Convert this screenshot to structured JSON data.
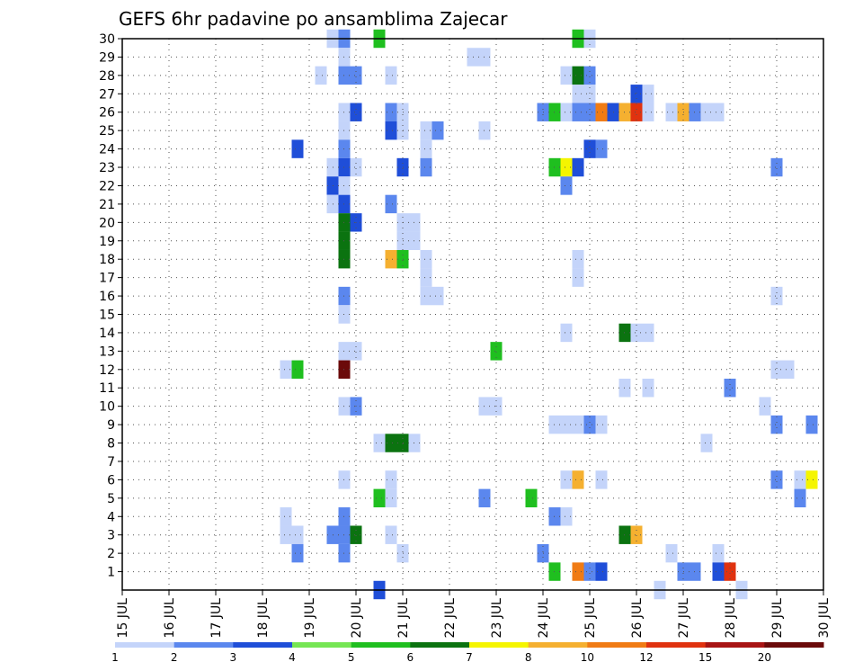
{
  "chart_data": {
    "type": "heatmap",
    "title": "GEFS 6hr padavine po ansamblima Zajecar",
    "xlabel": "",
    "ylabel": "",
    "x_ticks": [
      "15 JUL",
      "16 JUL",
      "17 JUL",
      "18 JUL",
      "19 JUL",
      "20 JUL",
      "21 JUL",
      "22 JUL",
      "23 JUL",
      "24 JUL",
      "25 JUL",
      "26 JUL",
      "27 JUL",
      "28 JUL",
      "29 JUL",
      "30 JUL"
    ],
    "y_ticks": [
      1,
      2,
      3,
      4,
      5,
      6,
      7,
      8,
      9,
      10,
      11,
      12,
      13,
      14,
      15,
      16,
      17,
      18,
      19,
      20,
      21,
      22,
      23,
      24,
      25,
      26,
      27,
      28,
      29,
      30
    ],
    "xlim": [
      15,
      30
    ],
    "ylim": [
      0,
      30
    ],
    "grid": true,
    "time_step_days": 0.25,
    "color_levels": [
      "1",
      "2",
      "3",
      "4",
      "5",
      "6",
      "7",
      "8",
      "10",
      "12",
      "15",
      "20"
    ],
    "color_scale": [
      "#c4d4fa",
      "#5b87ee",
      "#1f4ed8",
      "#75e653",
      "#1fbf1f",
      "#0b7310",
      "#f5f500",
      "#f5b030",
      "#f07b14",
      "#e0320f",
      "#a81414",
      "#6b0a0a"
    ],
    "cells": [
      [
        19.5,
        30,
        0
      ],
      [
        19.75,
        30,
        1
      ],
      [
        20.5,
        30,
        4
      ],
      [
        24.75,
        30,
        4
      ],
      [
        25.0,
        30,
        0
      ],
      [
        19.75,
        29,
        0
      ],
      [
        22.5,
        29,
        0
      ],
      [
        22.75,
        29,
        0
      ],
      [
        19.25,
        28,
        0
      ],
      [
        19.75,
        28,
        1
      ],
      [
        20.0,
        28,
        1
      ],
      [
        20.75,
        28,
        0
      ],
      [
        24.5,
        28,
        0
      ],
      [
        24.75,
        28,
        5
      ],
      [
        25.0,
        28,
        1
      ],
      [
        24.75,
        27,
        0
      ],
      [
        25.0,
        27,
        0
      ],
      [
        26.0,
        27,
        2
      ],
      [
        26.25,
        27,
        0
      ],
      [
        19.75,
        26,
        0
      ],
      [
        20.0,
        26,
        2
      ],
      [
        20.75,
        26,
        1
      ],
      [
        21.0,
        26,
        0
      ],
      [
        24.0,
        26,
        1
      ],
      [
        24.25,
        26,
        4
      ],
      [
        24.5,
        26,
        0
      ],
      [
        24.75,
        26,
        1
      ],
      [
        25.0,
        26,
        1
      ],
      [
        25.25,
        26,
        8
      ],
      [
        25.5,
        26,
        2
      ],
      [
        25.75,
        26,
        7
      ],
      [
        26.0,
        26,
        9
      ],
      [
        26.25,
        26,
        0
      ],
      [
        26.75,
        26,
        0
      ],
      [
        27.0,
        26,
        7
      ],
      [
        27.25,
        26,
        1
      ],
      [
        27.5,
        26,
        0
      ],
      [
        27.75,
        26,
        0
      ],
      [
        19.75,
        25,
        0
      ],
      [
        20.75,
        25,
        2
      ],
      [
        21.0,
        25,
        0
      ],
      [
        21.5,
        25,
        0
      ],
      [
        21.75,
        25,
        1
      ],
      [
        22.75,
        25,
        0
      ],
      [
        18.75,
        24,
        2
      ],
      [
        19.75,
        24,
        1
      ],
      [
        21.5,
        24,
        0
      ],
      [
        25.0,
        24,
        2
      ],
      [
        25.25,
        24,
        1
      ],
      [
        19.5,
        23,
        0
      ],
      [
        19.75,
        23,
        2
      ],
      [
        20.0,
        23,
        0
      ],
      [
        21.0,
        23,
        2
      ],
      [
        21.5,
        23,
        1
      ],
      [
        24.25,
        23,
        4
      ],
      [
        24.5,
        23,
        6
      ],
      [
        24.75,
        23,
        2
      ],
      [
        29.0,
        23,
        1
      ],
      [
        19.5,
        22,
        2
      ],
      [
        19.75,
        22,
        0
      ],
      [
        24.5,
        22,
        1
      ],
      [
        19.5,
        21,
        0
      ],
      [
        19.75,
        21,
        2
      ],
      [
        20.75,
        21,
        1
      ],
      [
        19.75,
        20,
        5
      ],
      [
        20.0,
        20,
        2
      ],
      [
        21.0,
        20,
        0
      ],
      [
        21.25,
        20,
        0
      ],
      [
        19.75,
        19,
        5
      ],
      [
        21.0,
        19,
        0
      ],
      [
        21.25,
        19,
        0
      ],
      [
        19.75,
        18,
        5
      ],
      [
        20.75,
        18,
        7
      ],
      [
        21.0,
        18,
        4
      ],
      [
        21.5,
        18,
        0
      ],
      [
        24.75,
        18,
        0
      ],
      [
        21.5,
        17,
        0
      ],
      [
        24.75,
        17,
        0
      ],
      [
        19.75,
        16,
        1
      ],
      [
        21.5,
        16,
        0
      ],
      [
        21.75,
        16,
        0
      ],
      [
        29.0,
        16,
        0
      ],
      [
        19.75,
        15,
        0
      ],
      [
        24.5,
        14,
        0
      ],
      [
        25.75,
        14,
        5
      ],
      [
        26.0,
        14,
        0
      ],
      [
        26.25,
        14,
        0
      ],
      [
        19.75,
        13,
        0
      ],
      [
        20.0,
        13,
        0
      ],
      [
        23.0,
        13,
        4
      ],
      [
        18.5,
        12,
        0
      ],
      [
        18.75,
        12,
        4
      ],
      [
        19.75,
        12,
        11
      ],
      [
        29.0,
        12,
        0
      ],
      [
        29.25,
        12,
        0
      ],
      [
        25.75,
        11,
        0
      ],
      [
        26.25,
        11,
        0
      ],
      [
        28.0,
        11,
        1
      ],
      [
        19.75,
        10,
        0
      ],
      [
        20.0,
        10,
        1
      ],
      [
        22.75,
        10,
        0
      ],
      [
        23.0,
        10,
        0
      ],
      [
        28.75,
        10,
        0
      ],
      [
        24.25,
        9,
        0
      ],
      [
        24.5,
        9,
        0
      ],
      [
        24.75,
        9,
        0
      ],
      [
        25.0,
        9,
        1
      ],
      [
        25.25,
        9,
        0
      ],
      [
        29.0,
        9,
        1
      ],
      [
        29.75,
        9,
        1
      ],
      [
        20.5,
        8,
        0
      ],
      [
        20.75,
        8,
        5
      ],
      [
        21.0,
        8,
        5
      ],
      [
        21.25,
        8,
        0
      ],
      [
        27.5,
        8,
        0
      ],
      [
        19.75,
        6,
        0
      ],
      [
        20.75,
        6,
        0
      ],
      [
        24.5,
        6,
        0
      ],
      [
        24.75,
        6,
        7
      ],
      [
        25.25,
        6,
        0
      ],
      [
        29.0,
        6,
        1
      ],
      [
        29.5,
        6,
        0
      ],
      [
        29.75,
        6,
        6
      ],
      [
        20.5,
        5,
        4
      ],
      [
        20.75,
        5,
        0
      ],
      [
        22.75,
        5,
        1
      ],
      [
        23.75,
        5,
        4
      ],
      [
        29.5,
        5,
        1
      ],
      [
        18.5,
        4,
        0
      ],
      [
        19.75,
        4,
        1
      ],
      [
        24.25,
        4,
        1
      ],
      [
        24.5,
        4,
        0
      ],
      [
        18.5,
        3,
        0
      ],
      [
        18.75,
        3,
        0
      ],
      [
        19.5,
        3,
        1
      ],
      [
        19.75,
        3,
        1
      ],
      [
        20.0,
        3,
        5
      ],
      [
        20.75,
        3,
        0
      ],
      [
        25.75,
        3,
        5
      ],
      [
        26.0,
        3,
        7
      ],
      [
        18.75,
        2,
        1
      ],
      [
        19.75,
        2,
        1
      ],
      [
        21.0,
        2,
        0
      ],
      [
        24.0,
        2,
        1
      ],
      [
        26.75,
        2,
        0
      ],
      [
        27.75,
        2,
        0
      ],
      [
        24.25,
        1,
        4
      ],
      [
        24.75,
        1,
        8
      ],
      [
        25.0,
        1,
        1
      ],
      [
        25.25,
        1,
        2
      ],
      [
        27.0,
        1,
        1
      ],
      [
        27.25,
        1,
        1
      ],
      [
        27.75,
        1,
        2
      ],
      [
        28.0,
        1,
        9
      ],
      [
        20.5,
        0,
        2
      ],
      [
        26.5,
        0,
        0
      ],
      [
        28.25,
        0,
        0
      ]
    ]
  }
}
